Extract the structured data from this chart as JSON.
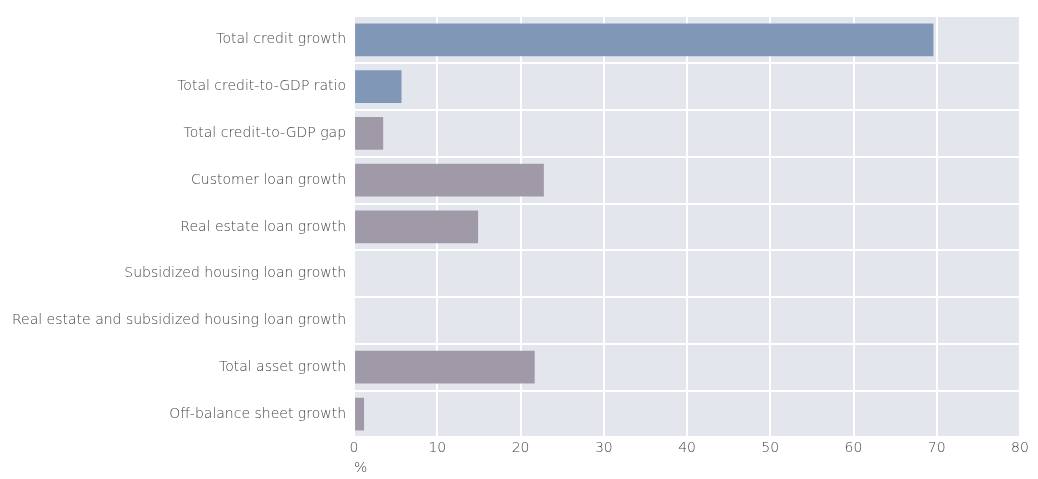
{
  "chart_data": {
    "type": "bar",
    "orientation": "horizontal",
    "xlabel": "%",
    "categories": [
      "Total credit growth",
      "Total credit-to-GDP ratio",
      "Total credit-to-GDP gap",
      "Customer loan growth",
      "Real estate loan growth",
      "Subsidized housing loan growth",
      "Real estate and subsidized housing loan growth",
      "Total asset growth",
      "Off-balance sheet growth"
    ],
    "values": [
      69.6,
      5.7,
      3.5,
      22.8,
      14.9,
      null,
      null,
      21.7,
      1.2
    ],
    "colors": [
      "#8197b7",
      "#8197b7",
      "#a09aa8",
      "#a09aa8",
      "#a09aa8",
      "#a09aa8",
      "#a09aa8",
      "#a09aa8",
      "#a09aa8"
    ],
    "xlim": [
      0,
      80
    ],
    "xticks": [
      0,
      10,
      20,
      30,
      40,
      50,
      60,
      70,
      80
    ],
    "grid": true,
    "legend": false
  }
}
